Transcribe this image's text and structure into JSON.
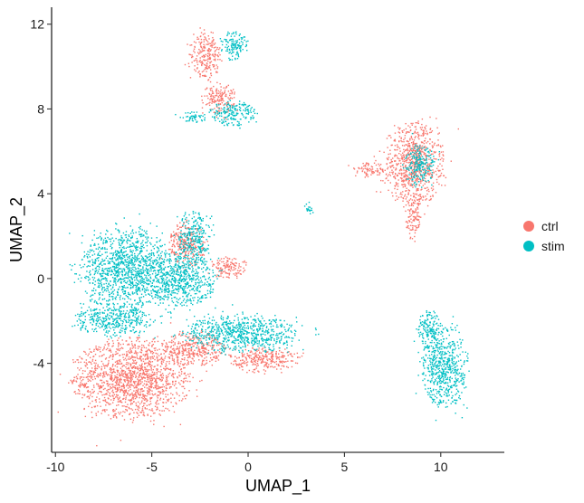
{
  "chart_data": {
    "type": "scatter",
    "title": "",
    "xlabel": "UMAP_1",
    "ylabel": "UMAP_2",
    "xlim": [
      -10.2,
      13.3
    ],
    "ylim": [
      -8.2,
      12.8
    ],
    "x_ticks": [
      -10,
      -5,
      0,
      5,
      10
    ],
    "x_tick_labels": [
      "-10",
      "-5",
      "0",
      "5",
      "10"
    ],
    "y_ticks": [
      -4,
      0,
      4,
      8,
      12
    ],
    "y_tick_labels": [
      "-4",
      "0",
      "4",
      "8",
      "12"
    ],
    "grid": false,
    "legend_position": "right",
    "series": [
      {
        "name": "ctrl",
        "color": "#F8766D",
        "clusters": [
          {
            "cx": -6.0,
            "cy": -4.7,
            "rx": 3.0,
            "ry": 1.9
          },
          {
            "cx": -2.8,
            "cy": -3.3,
            "rx": 1.6,
            "ry": 0.8
          },
          {
            "cx": 0.8,
            "cy": -3.8,
            "rx": 1.8,
            "ry": 0.6
          },
          {
            "cx": 8.6,
            "cy": 5.4,
            "rx": 1.6,
            "ry": 1.9
          },
          {
            "cx": 6.3,
            "cy": 5.1,
            "rx": 0.9,
            "ry": 0.35
          },
          {
            "cx": 8.6,
            "cy": 2.8,
            "rx": 0.4,
            "ry": 1.0
          },
          {
            "cx": -2.2,
            "cy": 10.5,
            "rx": 0.8,
            "ry": 1.1
          },
          {
            "cx": -1.5,
            "cy": 8.5,
            "rx": 0.9,
            "ry": 0.7
          },
          {
            "cx": -3.2,
            "cy": 1.6,
            "rx": 0.9,
            "ry": 1.1
          },
          {
            "cx": -1.0,
            "cy": 0.5,
            "rx": 1.0,
            "ry": 0.5
          }
        ]
      },
      {
        "name": "stim",
        "color": "#00BFC4",
        "clusters": [
          {
            "cx": -6.3,
            "cy": 0.4,
            "rx": 2.3,
            "ry": 2.0
          },
          {
            "cx": -3.5,
            "cy": 0.0,
            "rx": 1.8,
            "ry": 1.3
          },
          {
            "cx": -0.3,
            "cy": -2.6,
            "rx": 3.0,
            "ry": 0.9
          },
          {
            "cx": -7.0,
            "cy": -2.0,
            "rx": 2.0,
            "ry": 0.7
          },
          {
            "cx": -2.8,
            "cy": 2.0,
            "rx": 0.8,
            "ry": 1.2
          },
          {
            "cx": 10.2,
            "cy": -4.2,
            "rx": 1.2,
            "ry": 1.9
          },
          {
            "cx": 9.4,
            "cy": -2.4,
            "rx": 0.6,
            "ry": 0.9
          },
          {
            "cx": -0.7,
            "cy": 11.0,
            "rx": 0.7,
            "ry": 0.7
          },
          {
            "cx": -0.8,
            "cy": 7.8,
            "rx": 1.2,
            "ry": 0.6
          },
          {
            "cx": -2.9,
            "cy": 7.6,
            "rx": 0.8,
            "ry": 0.25
          },
          {
            "cx": 3.2,
            "cy": 3.3,
            "rx": 0.25,
            "ry": 0.3
          },
          {
            "cx": 8.9,
            "cy": 5.3,
            "rx": 0.8,
            "ry": 1.0
          }
        ]
      }
    ]
  }
}
